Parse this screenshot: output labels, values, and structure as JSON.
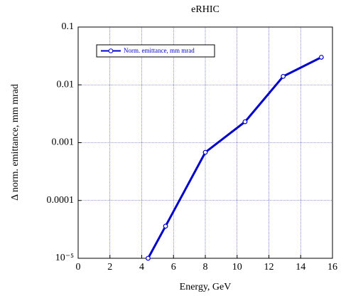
{
  "chart_data": {
    "type": "line",
    "title": "eRHIC",
    "x_label": "Energy, GeV",
    "y_label": "Δ norm. emittance, mm mrad",
    "x": [
      4.4,
      5.5,
      8,
      10.5,
      12.9,
      15.3
    ],
    "series": [
      {
        "name": "Norm. emittance, mm mrad",
        "color": "#0000cc",
        "values": [
          1e-05,
          3.6e-05,
          0.00068,
          0.0023,
          0.014,
          0.03
        ]
      }
    ],
    "xlim": [
      0,
      16
    ],
    "xticks": [
      0,
      2,
      4,
      6,
      8,
      10,
      12,
      14,
      16
    ],
    "ylim": [
      1e-05,
      0.1
    ],
    "yticks": [
      {
        "value": 1e-05,
        "label": "10⁻⁵"
      },
      0.0001,
      0.001,
      0.01,
      0.1
    ],
    "log_y": true,
    "grid": true,
    "legend": "upper left"
  }
}
